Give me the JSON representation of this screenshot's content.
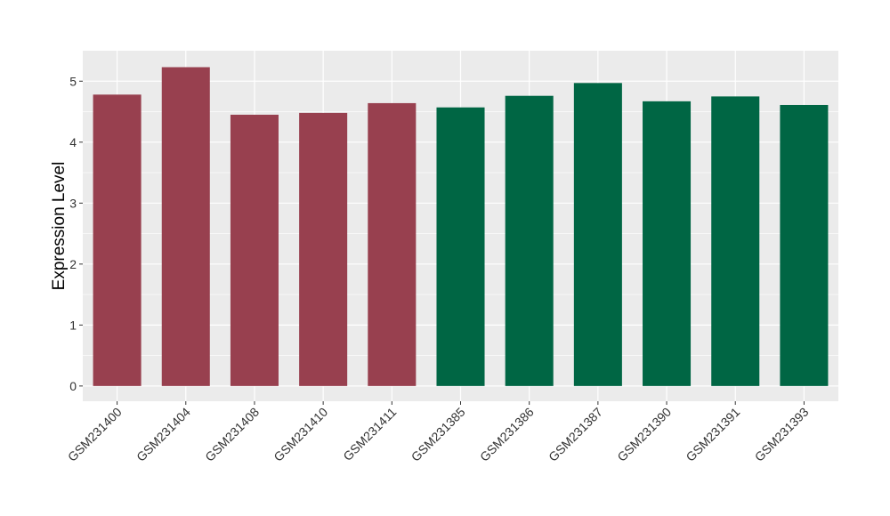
{
  "chart_data": {
    "type": "bar",
    "xlabel": "",
    "ylabel": "Expression Level",
    "ylim": [
      -0.25,
      5.5
    ],
    "yticks": [
      0,
      1,
      2,
      3,
      4,
      5
    ],
    "grid": true,
    "legend": "none",
    "categories": [
      "GSM231400",
      "GSM231404",
      "GSM231408",
      "GSM231410",
      "GSM231411",
      "GSM231385",
      "GSM231386",
      "GSM231387",
      "GSM231390",
      "GSM231391",
      "GSM231393"
    ],
    "values": [
      4.78,
      5.23,
      4.45,
      4.48,
      4.64,
      4.57,
      4.76,
      4.97,
      4.67,
      4.75,
      4.61
    ],
    "groups": [
      "A",
      "A",
      "A",
      "A",
      "A",
      "B",
      "B",
      "B",
      "B",
      "B",
      "B"
    ],
    "colors": {
      "A": "#98404F",
      "B": "#006644"
    },
    "panel_background": "#EBEBEB",
    "grid_color": "#FFFFFF"
  }
}
